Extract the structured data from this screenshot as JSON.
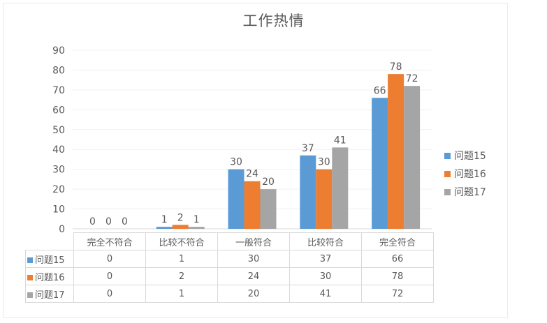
{
  "chart_data": {
    "type": "bar",
    "title": "工作热情",
    "categories": [
      "完全不符合",
      "比较不符合",
      "一般符合",
      "比较符合",
      "完全符合"
    ],
    "series": [
      {
        "name": "问题15",
        "color": "#5b9bd5",
        "values": [
          0,
          1,
          30,
          37,
          66
        ]
      },
      {
        "name": "问题16",
        "color": "#ed7d31",
        "values": [
          0,
          2,
          24,
          30,
          78
        ]
      },
      {
        "name": "问题17",
        "color": "#a5a5a5",
        "values": [
          0,
          1,
          20,
          41,
          72
        ]
      }
    ],
    "ylim": [
      0,
      90
    ],
    "yticks": [
      0,
      10,
      20,
      30,
      40,
      50,
      60,
      70,
      80,
      90
    ],
    "grid": true,
    "legend": "right",
    "data_table": true
  }
}
